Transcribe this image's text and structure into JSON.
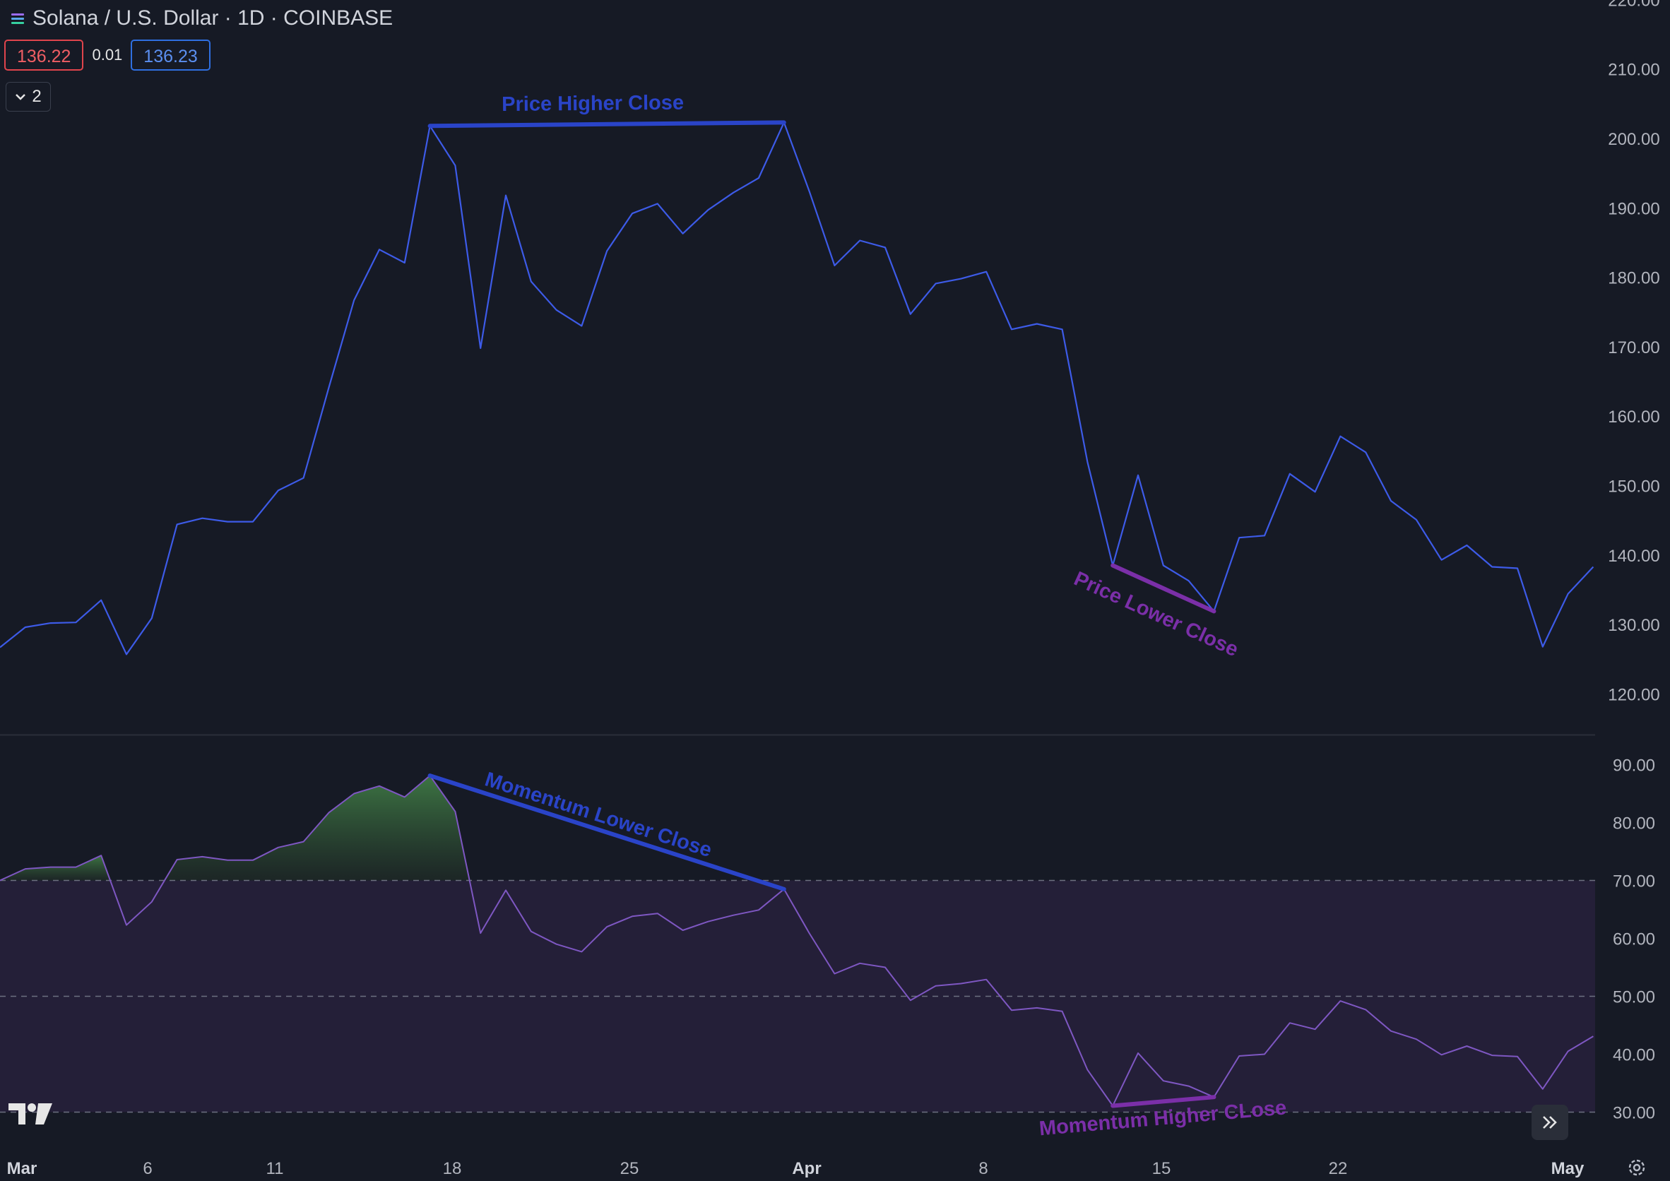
{
  "header": {
    "symbol_title": "Solana / U.S. Dollar · 1D · COINBASE",
    "sell_price": "136.22",
    "spread": "0.01",
    "buy_price": "136.23",
    "collapse_count": "2"
  },
  "icons": {
    "symbol": "solana-logo-icon",
    "collapse": "chevron-down-icon",
    "logo": "tradingview-logo-icon",
    "scroll": "double-chevron-right-icon",
    "settings": "gear-icon"
  },
  "colors": {
    "background": "#161a25",
    "price_line": "#3d5be8",
    "rsi_line": "#7e57c2",
    "rsi_band": "#241f38",
    "overbought_fill": "#3a6a3e",
    "annotation_blue": "#2a44c8",
    "annotation_purple": "#7b2fa8"
  },
  "chart_data": [
    {
      "type": "line",
      "pane": "price",
      "ylim": [
        115,
        220
      ],
      "y_ticks": [
        "120.00",
        "130.00",
        "140.00",
        "150.00",
        "160.00",
        "170.00",
        "180.00",
        "190.00",
        "200.00",
        "210.00",
        "220.00"
      ],
      "x_ticks": [
        "Mar",
        "6",
        "11",
        "18",
        "25",
        "Apr",
        "8",
        "15",
        "22",
        "May"
      ],
      "x": [
        0,
        1,
        2,
        3,
        4,
        5,
        6,
        7,
        8,
        9,
        10,
        11,
        12,
        13,
        14,
        15,
        16,
        17,
        18,
        19,
        20,
        21,
        22,
        23,
        24,
        25,
        26,
        27,
        28,
        29,
        30,
        31,
        32,
        33,
        34,
        35,
        36,
        37,
        38,
        39,
        40,
        41,
        42,
        43,
        44,
        45,
        46,
        47,
        48,
        49,
        50,
        51,
        52,
        53,
        54,
        55,
        56,
        57,
        58,
        59,
        60,
        61,
        62,
        63
      ],
      "values": [
        126.7,
        129.6,
        130.2,
        130.3,
        133.5,
        125.7,
        130.9,
        144.4,
        145.3,
        144.8,
        144.8,
        149.3,
        151.1,
        164.1,
        176.7,
        184.0,
        182.1,
        201.8,
        196.1,
        169.8,
        191.8,
        179.4,
        175.3,
        173.0,
        183.8,
        189.2,
        190.6,
        186.3,
        189.7,
        192.2,
        194.3,
        202.3,
        192.4,
        181.7,
        185.3,
        184.3,
        174.7,
        179.1,
        179.8,
        180.8,
        172.5,
        173.3,
        172.5,
        153.4,
        138.5,
        151.5,
        138.5,
        136.3,
        131.9,
        142.5,
        142.8,
        151.7,
        149.1,
        157.1,
        154.8,
        147.8,
        145.1,
        139.3,
        141.4,
        138.3,
        138.1,
        126.8,
        134.4,
        138.3
      ],
      "annotations": [
        {
          "text": "Price Higher Close",
          "from": [
            17,
            201.8
          ],
          "to": [
            31,
            202.3
          ],
          "color": "#2a44c8"
        },
        {
          "text": "Price Lower Close",
          "from": [
            44,
            138.5
          ],
          "to": [
            48,
            131.9
          ],
          "color": "#7b2fa8"
        }
      ]
    },
    {
      "type": "line",
      "pane": "momentum",
      "ylim": [
        25,
        94
      ],
      "y_ticks": [
        "30.00",
        "40.00",
        "50.00",
        "60.00",
        "70.00",
        "80.00",
        "90.00"
      ],
      "bands": [
        30,
        50,
        70
      ],
      "x": [
        0,
        1,
        2,
        3,
        4,
        5,
        6,
        7,
        8,
        9,
        10,
        11,
        12,
        13,
        14,
        15,
        16,
        17,
        18,
        19,
        20,
        21,
        22,
        23,
        24,
        25,
        26,
        27,
        28,
        29,
        30,
        31,
        32,
        33,
        34,
        35,
        36,
        37,
        38,
        39,
        40,
        41,
        42,
        43,
        44,
        45,
        46,
        47,
        48,
        49,
        50,
        51,
        52,
        53,
        54,
        55,
        56,
        57,
        58,
        59,
        60,
        61,
        62,
        63
      ],
      "values": [
        70.0,
        72.0,
        72.3,
        72.3,
        74.3,
        62.3,
        66.3,
        73.6,
        74.1,
        73.5,
        73.5,
        75.7,
        76.7,
        81.7,
        85.0,
        86.3,
        84.4,
        88.1,
        81.9,
        60.9,
        68.3,
        61.2,
        59.0,
        57.7,
        62.0,
        63.8,
        64.3,
        61.4,
        62.9,
        64.0,
        64.9,
        68.5,
        60.9,
        53.9,
        55.7,
        55.0,
        49.3,
        51.8,
        52.2,
        52.9,
        47.6,
        48.0,
        47.4,
        37.3,
        31.1,
        40.2,
        35.4,
        34.5,
        32.6,
        39.7,
        40.0,
        45.4,
        44.3,
        49.2,
        47.7,
        44.0,
        42.6,
        39.9,
        41.4,
        39.8,
        39.6,
        34.0,
        40.5,
        43.1
      ],
      "annotations": [
        {
          "text": "Momentum Lower Close",
          "from": [
            17,
            88.1
          ],
          "to": [
            31,
            68.5
          ],
          "color": "#2a44c8"
        },
        {
          "text": "Momentum Higher CLose",
          "from": [
            44,
            31.1
          ],
          "to": [
            48,
            32.6
          ],
          "color": "#7b2fa8"
        }
      ]
    }
  ]
}
